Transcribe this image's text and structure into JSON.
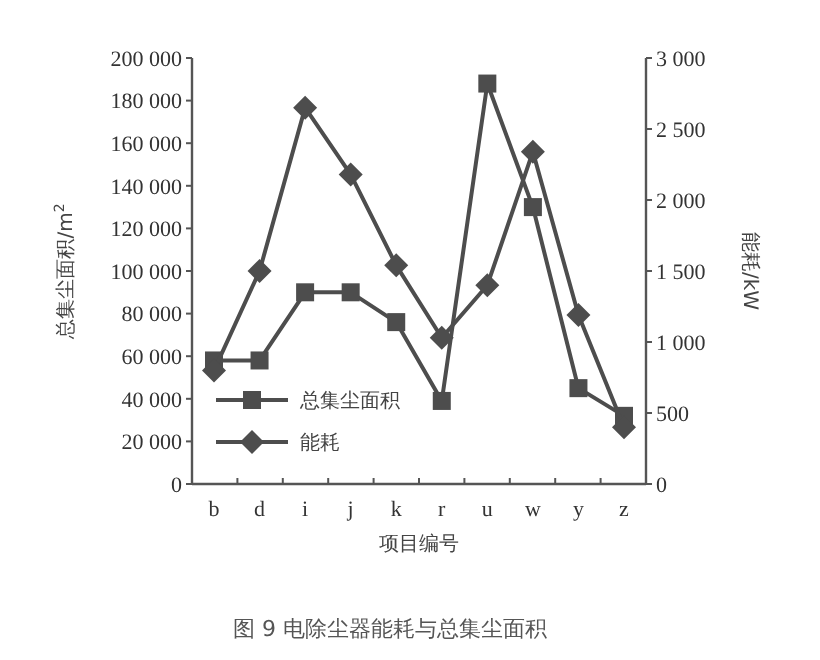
{
  "chart_data": {
    "type": "line",
    "categories": [
      "b",
      "d",
      "i",
      "j",
      "k",
      "r",
      "u",
      "w",
      "y",
      "z"
    ],
    "xlabel": "项目编号",
    "ylabel": "总集尘面积/m$^{2}$",
    "y2label": "能耗/kW",
    "ylim": [
      0,
      200000
    ],
    "yticks": [
      {
        "value": 0,
        "label": "0"
      },
      {
        "value": 20000,
        "label": "20 000"
      },
      {
        "value": 40000,
        "label": "40 000"
      },
      {
        "value": 60000,
        "label": "60 000"
      },
      {
        "value": 80000,
        "label": "80 000"
      },
      {
        "value": 100000,
        "label": "100 000"
      },
      {
        "value": 120000,
        "label": "120 000"
      },
      {
        "value": 140000,
        "label": "140 000"
      },
      {
        "value": 160000,
        "label": "160 000"
      },
      {
        "value": 180000,
        "label": "180 000"
      },
      {
        "value": 200000,
        "label": "200 000"
      }
    ],
    "y2lim": [
      0,
      3000
    ],
    "y2ticks": [
      0,
      500,
      {
        "value": 1000,
        "label": "1 000"
      },
      {
        "value": 1500,
        "label": "1 500"
      },
      {
        "value": 2000,
        "label": "2 000"
      },
      {
        "value": 2500,
        "label": "2 500"
      },
      {
        "value": 3000,
        "label": "3 000"
      }
    ],
    "series": [
      {
        "name": "总集尘面积",
        "color": "#4d4d4d",
        "marker": "square",
        "values": [
          58000,
          58000,
          90000,
          90000,
          76000,
          39000,
          188000,
          130000,
          45000,
          32000
        ]
      },
      {
        "name": "能耗",
        "color": "#4d4d4d",
        "marker": "diamond",
        "axis": "y2",
        "values": [
          800,
          1500,
          2650,
          2180,
          1540,
          1030,
          1400,
          2340,
          1190,
          400
        ]
      }
    ],
    "legend": "bottom left",
    "grid": false,
    "annotations": [
      "图 9 电除尘器能耗与总集尘面积"
    ]
  }
}
